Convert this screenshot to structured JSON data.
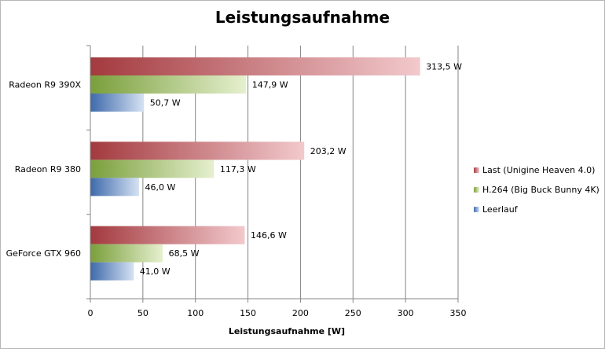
{
  "chart_data": {
    "type": "bar",
    "orientation": "horizontal",
    "title": "Leistungsaufnahme",
    "xlabel": "Leistungsaufnahme  [W]",
    "ylabel": "",
    "xlim": [
      0,
      350
    ],
    "xticks": [
      "0",
      "50",
      "100",
      "150",
      "200",
      "250",
      "300",
      "350"
    ],
    "grid": true,
    "legend_position": "right",
    "categories": [
      "Radeon R9 390X",
      "Radeon R9 380",
      "GeForce GTX 960"
    ],
    "series": [
      {
        "name": "Last (Unigine Heaven 4.0)",
        "values": [
          313.5,
          203.2,
          146.6
        ],
        "labels": [
          "313,5 W",
          "203,2 W",
          "146,6 W"
        ],
        "color_dark": "#a33a3f",
        "color_light": "#f2c9cc"
      },
      {
        "name": "H.264 (Big Buck Bunny 4K)",
        "values": [
          147.9,
          117.3,
          68.5
        ],
        "labels": [
          "147,9 W",
          "117,3 W",
          "68,5 W"
        ],
        "color_dark": "#7a9f3b",
        "color_light": "#e6f0cf"
      },
      {
        "name": "Leerlauf",
        "values": [
          50.7,
          46.0,
          41.0
        ],
        "labels": [
          "50,7 W",
          "46,0 W",
          "41,0 W"
        ],
        "color_dark": "#3f6aab",
        "color_light": "#d5e2f3"
      }
    ]
  }
}
